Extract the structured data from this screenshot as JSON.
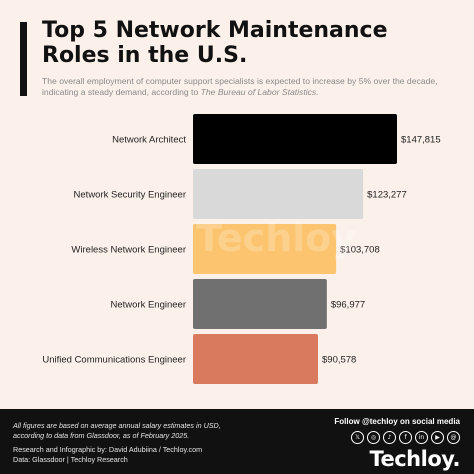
{
  "header": {
    "title_line1": "Top 5 Network Maintenance",
    "title_line2": "Roles in the U.S.",
    "subtitle_main": "The overall employment of computer support specialists is expected to increase by 5% over the decade, indicating a steady demand, according to",
    "subtitle_source": "The Bureau of Labor Statistics."
  },
  "chart_data": {
    "type": "bar",
    "orientation": "horizontal",
    "categories": [
      "Network Architect",
      "Network Security Engineer",
      "Wireless Network Engineer",
      "Network Engineer",
      "Unified Communications Engineer"
    ],
    "values": [
      147815,
      123277,
      103708,
      96977,
      90578
    ],
    "value_labels": [
      "$147,815",
      "$123,277",
      "$103,708",
      "$96,977",
      "$90,578"
    ],
    "colors": [
      "#000000",
      "#d9d9d9",
      "#fcc46f",
      "#707070",
      "#d97a5f"
    ],
    "grid": false,
    "legend": "none"
  },
  "watermark": "Techloy",
  "footer": {
    "note": "All figures are based on average annual salary estimates in USD, according to data from Glassdoor, as of February 2025.",
    "credit": "Research and Infographic by: David Adubiina / Techloy.com",
    "data_source": "Data: Glassdoor | Techloy Research",
    "follow": "Follow @techloy on social media",
    "brand": "Techloy.",
    "social_icons": [
      "x-icon",
      "instagram-icon",
      "tiktok-icon",
      "facebook-icon",
      "linkedin-icon",
      "youtube-icon",
      "threads-icon"
    ]
  }
}
